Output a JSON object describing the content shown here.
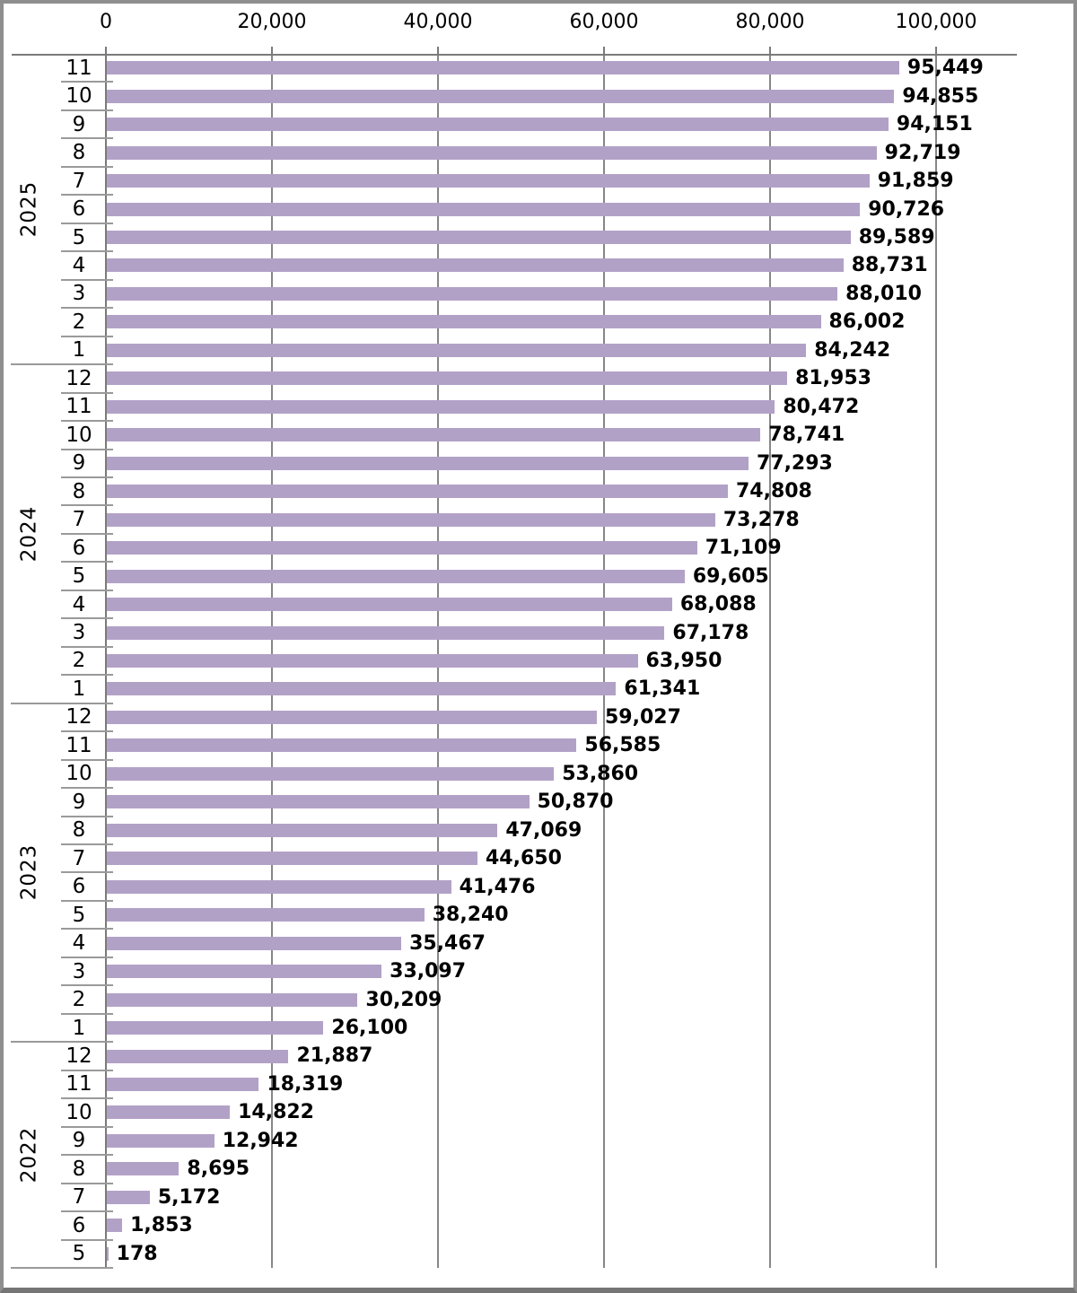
{
  "chart_data": {
    "type": "bar",
    "orientation": "horizontal",
    "title": "",
    "value_axis": {
      "position": "top",
      "tick_labels": [
        "0",
        "20,000",
        "40,000",
        "60,000",
        "80,000",
        "100,000"
      ],
      "tick_values": [
        0,
        20000,
        40000,
        60000,
        80000,
        100000
      ],
      "xlim": [
        0,
        110000
      ],
      "grid": true
    },
    "category_axis": {
      "levels": [
        "month",
        "year"
      ],
      "position": "left"
    },
    "groups": [
      {
        "year": "2025",
        "months": [
          "11",
          "10",
          "9",
          "8",
          "7",
          "6",
          "5",
          "4",
          "3",
          "2",
          "1"
        ],
        "values": [
          95449,
          94855,
          94151,
          92719,
          91859,
          90726,
          89589,
          88731,
          88010,
          86002,
          84242
        ]
      },
      {
        "year": "2024",
        "months": [
          "12",
          "11",
          "10",
          "9",
          "8",
          "7",
          "6",
          "5",
          "4",
          "3",
          "2",
          "1"
        ],
        "values": [
          81953,
          80472,
          78741,
          77293,
          74808,
          73278,
          71109,
          69605,
          68088,
          67178,
          63950,
          61341
        ]
      },
      {
        "year": "2023",
        "months": [
          "12",
          "11",
          "10",
          "9",
          "8",
          "7",
          "6",
          "5",
          "4",
          "3",
          "2",
          "1"
        ],
        "values": [
          59027,
          56585,
          53860,
          50870,
          47069,
          44650,
          41476,
          38240,
          35467,
          33097,
          30209,
          26100
        ]
      },
      {
        "year": "2022",
        "months": [
          "12",
          "11",
          "10",
          "9",
          "8",
          "7",
          "6",
          "5"
        ],
        "values": [
          21887,
          18319,
          14822,
          12942,
          8695,
          5172,
          1853,
          178
        ]
      }
    ],
    "data_labels": {
      "shown": true,
      "format": "#,##0",
      "bold": true
    },
    "colors": {
      "bar_fill": "#b2a1c7",
      "gridline": "#878787",
      "axis_line": "#7a7a7a",
      "category_line": "#9a9a9a",
      "text": "#000000",
      "background": "#ffffff",
      "frame_border": "#8e8e8e"
    },
    "legend": {
      "shown": false
    }
  }
}
